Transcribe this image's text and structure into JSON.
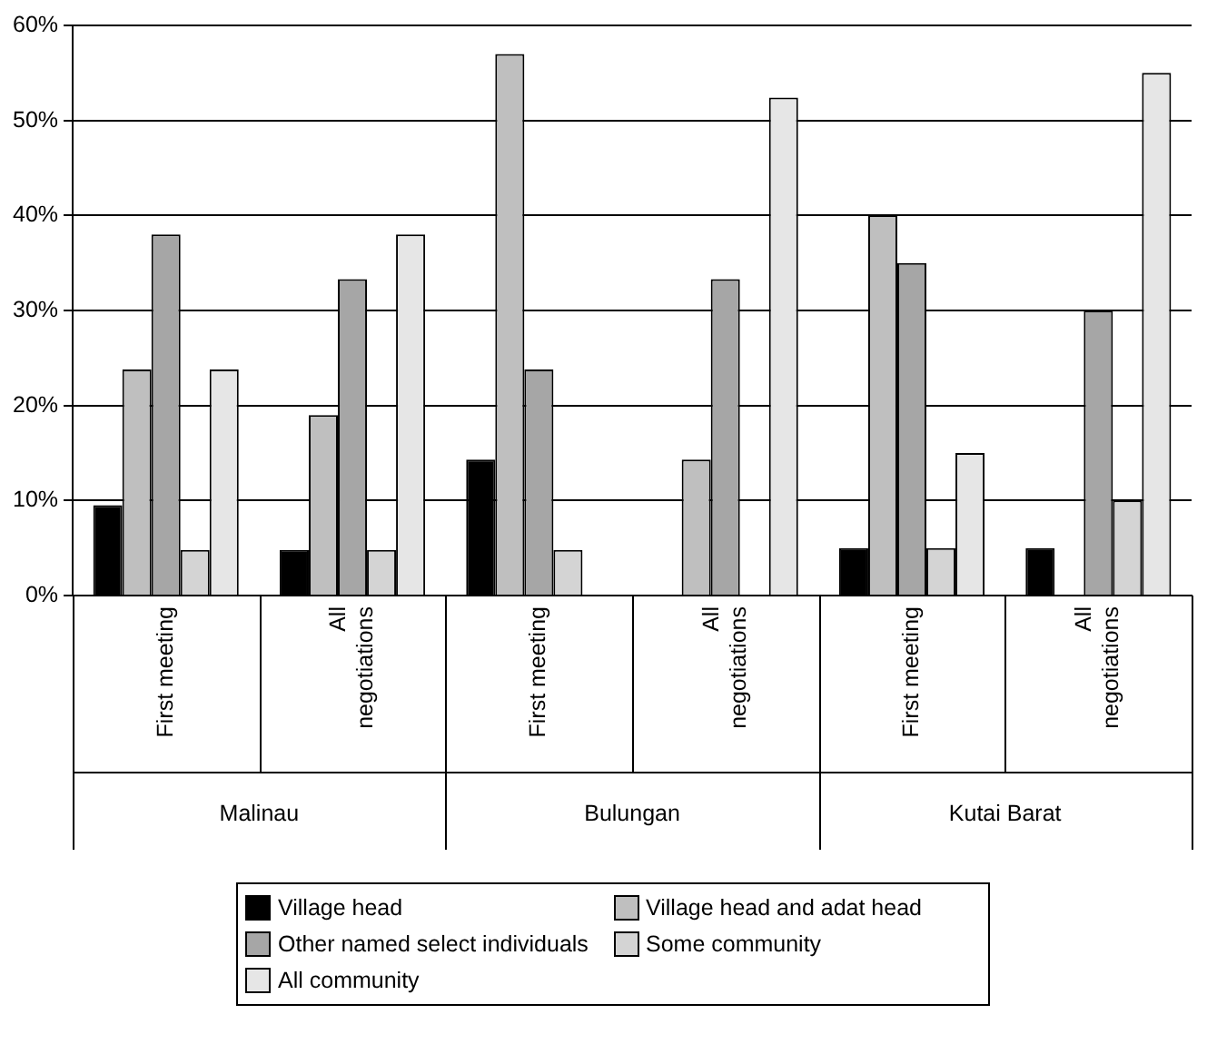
{
  "chart_data": {
    "type": "bar",
    "categories": [
      "First meeting",
      "All negotiations",
      "First meeting",
      "All negotiations",
      "First meeting",
      "All negotiations"
    ],
    "series": [
      {
        "name": "Village head",
        "color": "#000000",
        "values": [
          9.5,
          4.8,
          14.3,
          0,
          5,
          5
        ]
      },
      {
        "name": "Village head and adat head",
        "color": "#bfbfbf",
        "values": [
          23.8,
          19,
          57,
          14.3,
          40,
          0
        ]
      },
      {
        "name": "Other named select individuals",
        "color": "#a6a6a6",
        "values": [
          38,
          33.3,
          23.8,
          33.3,
          35,
          30
        ]
      },
      {
        "name": "Some community",
        "color": "#d4d4d4",
        "values": [
          4.8,
          4.8,
          4.8,
          0,
          5,
          10
        ]
      },
      {
        "name": "All community",
        "color": "#e6e6e6",
        "values": [
          23.8,
          38,
          0,
          52.4,
          15,
          55
        ]
      }
    ],
    "annotations": [
      "Malinau",
      "Bulungan",
      "Kutai Barat"
    ],
    "ylim": [
      0,
      60
    ],
    "yticks": [
      {
        "value": 0,
        "label": "0%"
      },
      {
        "value": 10,
        "label": "10%"
      },
      {
        "value": 20,
        "label": "20%"
      },
      {
        "value": 30,
        "label": "30%"
      },
      {
        "value": 40,
        "label": "40%"
      },
      {
        "value": 50,
        "label": "50%"
      },
      {
        "value": 60,
        "label": "60%"
      }
    ],
    "grid": "y",
    "legend": "bottom"
  }
}
